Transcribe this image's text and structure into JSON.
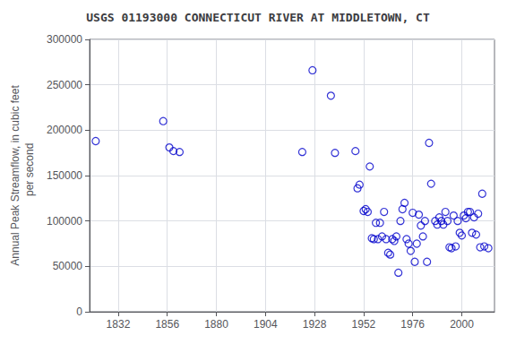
{
  "chart_data": {
    "type": "scatter",
    "title": "USGS 01193000 CONNECTICUT RIVER AT MIDDLETOWN, CT",
    "ylabel": "Annual Peak Streamflow, in cubic feet\n    per second",
    "xlim": [
      1818,
      2016
    ],
    "ylim": [
      0,
      300000
    ],
    "xticks": [
      1832,
      1856,
      1880,
      1904,
      1928,
      1952,
      1976,
      2000
    ],
    "yticks": [
      0,
      50000,
      100000,
      150000,
      200000,
      250000,
      300000
    ],
    "color": "#0000cc",
    "marker": "circle",
    "grid": true,
    "x": [
      1821,
      1854,
      1857,
      1859,
      1862,
      1922,
      1927,
      1936,
      1938,
      1948,
      1949,
      1950,
      1952,
      1953,
      1954,
      1955,
      1956,
      1957,
      1958,
      1959,
      1960,
      1961,
      1962,
      1963,
      1964,
      1965,
      1966,
      1967,
      1968,
      1969,
      1970,
      1971,
      1972,
      1973,
      1974,
      1975,
      1976,
      1977,
      1978,
      1979,
      1980,
      1981,
      1982,
      1983,
      1984,
      1985,
      1987,
      1988,
      1989,
      1990,
      1991,
      1992,
      1993,
      1994,
      1995,
      1996,
      1997,
      1998,
      1999,
      2000,
      2001,
      2002,
      2003,
      2004,
      2005,
      2006,
      2007,
      2008,
      2009,
      2010,
      2011,
      2013
    ],
    "values": [
      188000,
      210000,
      181000,
      177000,
      176000,
      176000,
      266000,
      238000,
      175000,
      177000,
      136000,
      140000,
      111000,
      113000,
      110000,
      160000,
      81000,
      80000,
      98000,
      80000,
      98000,
      83000,
      110000,
      80000,
      65000,
      63000,
      80000,
      78000,
      83000,
      43000,
      100000,
      113000,
      120000,
      80000,
      75000,
      67000,
      109000,
      55000,
      75000,
      107000,
      95000,
      83000,
      100000,
      55000,
      186000,
      141000,
      100000,
      96000,
      104000,
      100000,
      96000,
      110000,
      100000,
      71000,
      70000,
      106000,
      72000,
      100000,
      87000,
      84000,
      106000,
      103000,
      110000,
      110000,
      87000,
      104000,
      85000,
      108000,
      71000,
      130000,
      72000,
      70000
    ]
  }
}
